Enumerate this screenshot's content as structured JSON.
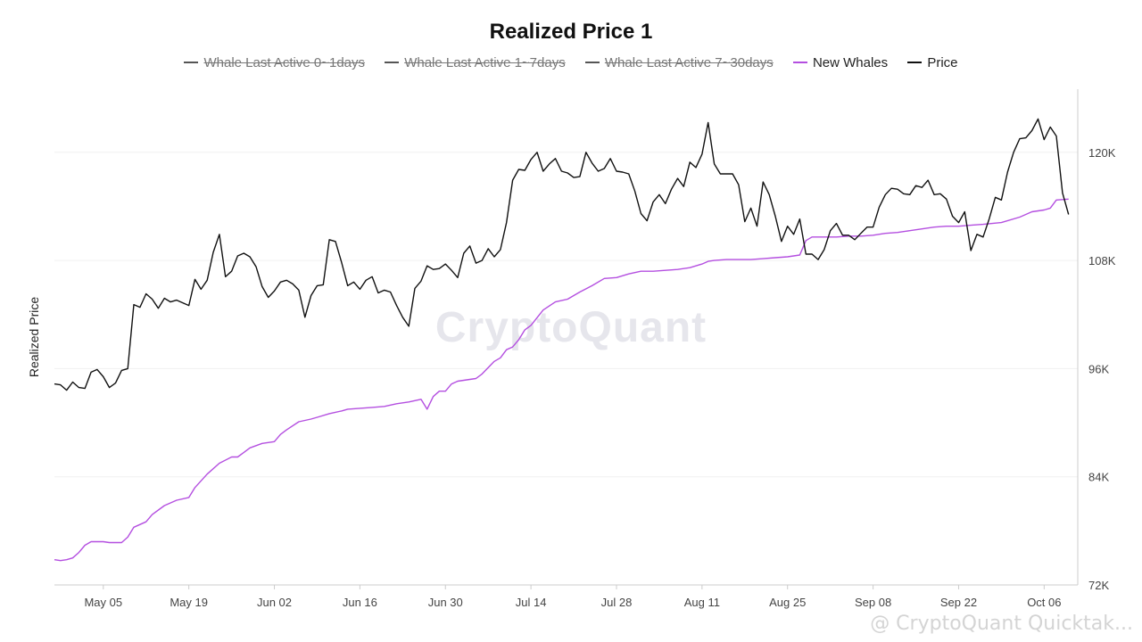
{
  "chart_data": {
    "type": "line",
    "title": "Realized Price 1",
    "ylabel": "Realized Price",
    "xlabel": "",
    "ylim": [
      72000,
      127000
    ],
    "yticks": [
      72000,
      84000,
      96000,
      108000,
      120000
    ],
    "ytick_labels": [
      "72K",
      "84K",
      "96K",
      "108K",
      "120K"
    ],
    "xticks": [
      "May 05",
      "May 19",
      "Jun 02",
      "Jun 16",
      "Jun 30",
      "Jul 14",
      "Jul 28",
      "Aug 11",
      "Aug 25",
      "Sep 08",
      "Sep 22",
      "Oct 06"
    ],
    "xtick_day_offsets": [
      8,
      22,
      36,
      50,
      64,
      78,
      92,
      106,
      120,
      134,
      148,
      162
    ],
    "x_start": "Apr 27",
    "x_end_day": 166,
    "legend": [
      {
        "name": "Whale Last Active 0~1days",
        "color": "#555555",
        "visible": false
      },
      {
        "name": "Whale Last Active 1~7days",
        "color": "#555555",
        "visible": false
      },
      {
        "name": "Whale Last Active 7~30days",
        "color": "#555555",
        "visible": false
      },
      {
        "name": "New Whales",
        "color": "#b44fe0",
        "visible": true
      },
      {
        "name": "Price",
        "color": "#111111",
        "visible": true
      }
    ],
    "series": [
      {
        "name": "New Whales",
        "color": "#b44fe0",
        "points": [
          [
            0,
            74800
          ],
          [
            1,
            74700
          ],
          [
            2,
            74800
          ],
          [
            3,
            75000
          ],
          [
            4,
            75600
          ],
          [
            5,
            76400
          ],
          [
            6,
            76800
          ],
          [
            8,
            76800
          ],
          [
            9,
            76700
          ],
          [
            11,
            76700
          ],
          [
            12,
            77300
          ],
          [
            13,
            78400
          ],
          [
            15,
            79000
          ],
          [
            16,
            79800
          ],
          [
            18,
            80800
          ],
          [
            20,
            81400
          ],
          [
            22,
            81700
          ],
          [
            23,
            82800
          ],
          [
            25,
            84300
          ],
          [
            27,
            85500
          ],
          [
            29,
            86200
          ],
          [
            30,
            86200
          ],
          [
            31,
            86700
          ],
          [
            32,
            87200
          ],
          [
            34,
            87700
          ],
          [
            36,
            87900
          ],
          [
            37,
            88700
          ],
          [
            38,
            89200
          ],
          [
            40,
            90100
          ],
          [
            42,
            90400
          ],
          [
            43,
            90600
          ],
          [
            45,
            91000
          ],
          [
            47,
            91300
          ],
          [
            48,
            91500
          ],
          [
            50,
            91600
          ],
          [
            52,
            91700
          ],
          [
            54,
            91800
          ],
          [
            56,
            92100
          ],
          [
            58,
            92300
          ],
          [
            60,
            92600
          ],
          [
            61,
            91500
          ],
          [
            62,
            92900
          ],
          [
            63,
            93500
          ],
          [
            64,
            93500
          ],
          [
            65,
            94300
          ],
          [
            66,
            94600
          ],
          [
            68,
            94800
          ],
          [
            69,
            94900
          ],
          [
            70,
            95400
          ],
          [
            72,
            96800
          ],
          [
            73,
            97200
          ],
          [
            74,
            98100
          ],
          [
            75,
            98400
          ],
          [
            76,
            99200
          ],
          [
            77,
            100300
          ],
          [
            78,
            100800
          ],
          [
            80,
            102500
          ],
          [
            82,
            103400
          ],
          [
            84,
            103700
          ],
          [
            86,
            104500
          ],
          [
            88,
            105200
          ],
          [
            90,
            106000
          ],
          [
            92,
            106100
          ],
          [
            94,
            106500
          ],
          [
            96,
            106800
          ],
          [
            98,
            106800
          ],
          [
            100,
            106900
          ],
          [
            102,
            107000
          ],
          [
            104,
            107200
          ],
          [
            106,
            107600
          ],
          [
            107,
            107900
          ],
          [
            108,
            108000
          ],
          [
            110,
            108100
          ],
          [
            112,
            108100
          ],
          [
            114,
            108100
          ],
          [
            116,
            108200
          ],
          [
            118,
            108300
          ],
          [
            120,
            108400
          ],
          [
            121,
            108500
          ],
          [
            122,
            108600
          ],
          [
            123,
            110200
          ],
          [
            124,
            110600
          ],
          [
            128,
            110600
          ],
          [
            130,
            110700
          ],
          [
            132,
            110700
          ],
          [
            134,
            110800
          ],
          [
            136,
            111000
          ],
          [
            138,
            111100
          ],
          [
            140,
            111300
          ],
          [
            142,
            111500
          ],
          [
            144,
            111700
          ],
          [
            146,
            111800
          ],
          [
            148,
            111800
          ],
          [
            150,
            111900
          ],
          [
            152,
            112000
          ],
          [
            155,
            112200
          ],
          [
            158,
            112800
          ],
          [
            160,
            113400
          ],
          [
            162,
            113600
          ],
          [
            163,
            113800
          ],
          [
            164,
            114700
          ],
          [
            166,
            114800
          ]
        ]
      },
      {
        "name": "Price",
        "color": "#111111",
        "points": [
          [
            0,
            94300
          ],
          [
            1,
            94200
          ],
          [
            2,
            93600
          ],
          [
            3,
            94500
          ],
          [
            4,
            93900
          ],
          [
            5,
            93800
          ],
          [
            6,
            95600
          ],
          [
            7,
            95900
          ],
          [
            8,
            95100
          ],
          [
            9,
            93900
          ],
          [
            10,
            94400
          ],
          [
            11,
            95800
          ],
          [
            12,
            96000
          ],
          [
            13,
            103100
          ],
          [
            14,
            102800
          ],
          [
            15,
            104300
          ],
          [
            16,
            103700
          ],
          [
            17,
            102700
          ],
          [
            18,
            103800
          ],
          [
            19,
            103400
          ],
          [
            20,
            103600
          ],
          [
            21,
            103300
          ],
          [
            22,
            103000
          ],
          [
            23,
            105900
          ],
          [
            24,
            104800
          ],
          [
            25,
            105800
          ],
          [
            26,
            108900
          ],
          [
            27,
            110900
          ],
          [
            28,
            106200
          ],
          [
            29,
            106800
          ],
          [
            30,
            108500
          ],
          [
            31,
            108800
          ],
          [
            32,
            108400
          ],
          [
            33,
            107300
          ],
          [
            34,
            105100
          ],
          [
            35,
            103900
          ],
          [
            36,
            104600
          ],
          [
            37,
            105600
          ],
          [
            38,
            105800
          ],
          [
            39,
            105400
          ],
          [
            40,
            104700
          ],
          [
            41,
            101700
          ],
          [
            42,
            104100
          ],
          [
            43,
            105200
          ],
          [
            44,
            105300
          ],
          [
            45,
            110300
          ],
          [
            46,
            110100
          ],
          [
            47,
            107800
          ],
          [
            48,
            105200
          ],
          [
            49,
            105600
          ],
          [
            50,
            104800
          ],
          [
            51,
            105800
          ],
          [
            52,
            106200
          ],
          [
            53,
            104400
          ],
          [
            54,
            104700
          ],
          [
            55,
            104500
          ],
          [
            56,
            103000
          ],
          [
            57,
            101700
          ],
          [
            58,
            100700
          ],
          [
            59,
            104900
          ],
          [
            60,
            105700
          ],
          [
            61,
            107400
          ],
          [
            62,
            107000
          ],
          [
            63,
            107100
          ],
          [
            64,
            107600
          ],
          [
            65,
            106900
          ],
          [
            66,
            106100
          ],
          [
            67,
            108800
          ],
          [
            68,
            109600
          ],
          [
            69,
            107700
          ],
          [
            70,
            108000
          ],
          [
            71,
            109300
          ],
          [
            72,
            108400
          ],
          [
            73,
            109200
          ],
          [
            74,
            112200
          ],
          [
            75,
            116900
          ],
          [
            76,
            118100
          ],
          [
            77,
            118000
          ],
          [
            78,
            119200
          ],
          [
            79,
            120000
          ],
          [
            80,
            117900
          ],
          [
            81,
            118700
          ],
          [
            82,
            119300
          ],
          [
            83,
            117900
          ],
          [
            84,
            117700
          ],
          [
            85,
            117200
          ],
          [
            86,
            117300
          ],
          [
            87,
            120000
          ],
          [
            88,
            118800
          ],
          [
            89,
            117900
          ],
          [
            90,
            118200
          ],
          [
            91,
            119300
          ],
          [
            92,
            117900
          ],
          [
            93,
            117800
          ],
          [
            94,
            117600
          ],
          [
            95,
            115700
          ],
          [
            96,
            113200
          ],
          [
            97,
            112400
          ],
          [
            98,
            114500
          ],
          [
            99,
            115300
          ],
          [
            100,
            114300
          ],
          [
            101,
            115900
          ],
          [
            102,
            117100
          ],
          [
            103,
            116200
          ],
          [
            104,
            118900
          ],
          [
            105,
            118300
          ],
          [
            106,
            119800
          ],
          [
            107,
            123300
          ],
          [
            108,
            118700
          ],
          [
            109,
            117600
          ],
          [
            110,
            117600
          ],
          [
            111,
            117600
          ],
          [
            112,
            116400
          ],
          [
            113,
            112300
          ],
          [
            114,
            113800
          ],
          [
            115,
            111800
          ],
          [
            116,
            116700
          ],
          [
            117,
            115300
          ],
          [
            118,
            112900
          ],
          [
            119,
            110100
          ],
          [
            120,
            111800
          ],
          [
            121,
            110900
          ],
          [
            122,
            112600
          ],
          [
            123,
            108700
          ],
          [
            124,
            108700
          ],
          [
            125,
            108100
          ],
          [
            126,
            109200
          ],
          [
            127,
            111300
          ],
          [
            128,
            112100
          ],
          [
            129,
            110800
          ],
          [
            130,
            110800
          ],
          [
            131,
            110300
          ],
          [
            132,
            111000
          ],
          [
            133,
            111700
          ],
          [
            134,
            111700
          ],
          [
            135,
            113900
          ],
          [
            136,
            115300
          ],
          [
            137,
            116000
          ],
          [
            138,
            115900
          ],
          [
            139,
            115400
          ],
          [
            140,
            115300
          ],
          [
            141,
            116300
          ],
          [
            142,
            116100
          ],
          [
            143,
            116900
          ],
          [
            144,
            115300
          ],
          [
            145,
            115400
          ],
          [
            146,
            114800
          ],
          [
            147,
            112900
          ],
          [
            148,
            112200
          ],
          [
            149,
            113400
          ],
          [
            150,
            109100
          ],
          [
            151,
            110900
          ],
          [
            152,
            110600
          ],
          [
            153,
            112600
          ],
          [
            154,
            115000
          ],
          [
            155,
            114700
          ],
          [
            156,
            117800
          ],
          [
            157,
            120000
          ],
          [
            158,
            121500
          ],
          [
            159,
            121600
          ],
          [
            160,
            122400
          ],
          [
            161,
            123700
          ],
          [
            162,
            121400
          ],
          [
            163,
            122800
          ],
          [
            164,
            121800
          ],
          [
            165,
            115500
          ],
          [
            166,
            113100
          ]
        ]
      }
    ]
  },
  "watermark": "CryptoQuant",
  "corner_watermark": "@ CryptoQuant Quicktak..."
}
